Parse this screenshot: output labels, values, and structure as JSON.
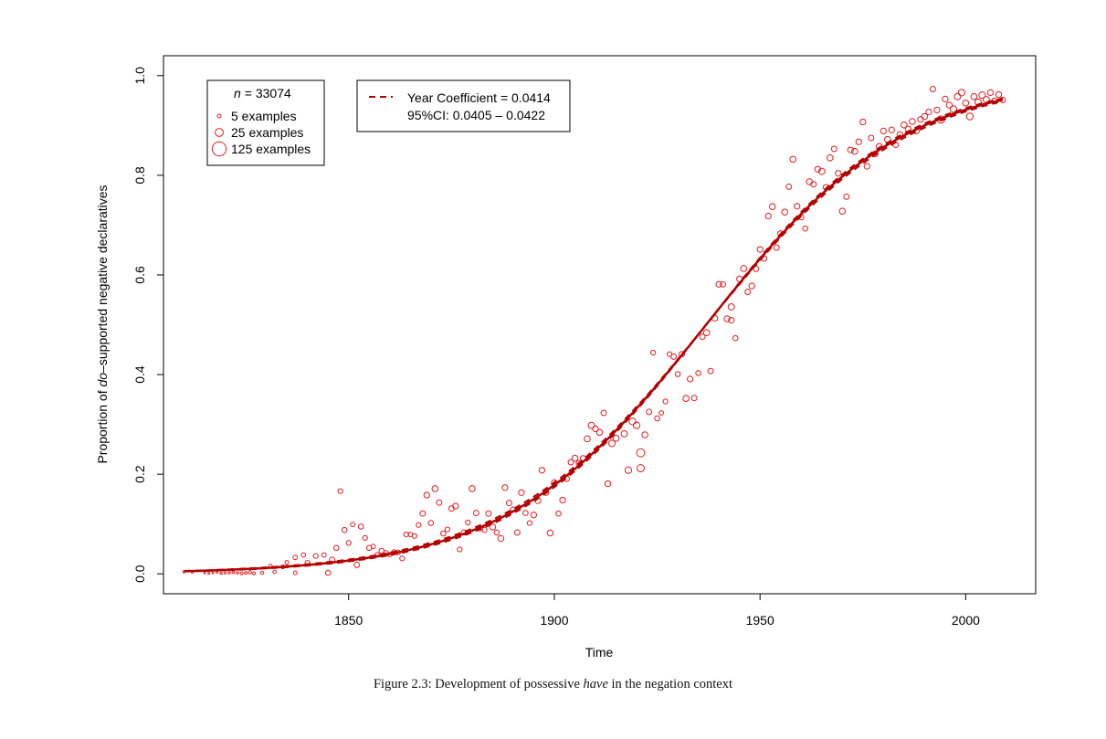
{
  "chart_data": {
    "type": "scatter",
    "xlabel": "Time",
    "ylabel_pre": "Proportion of ",
    "ylabel_italic": "do",
    "ylabel_post": "–supported negative declaratives",
    "xlim": [
      1805,
      2017
    ],
    "ylim": [
      -0.04,
      1.04
    ],
    "xticks": [
      1850,
      1900,
      1950,
      2000
    ],
    "yticks": [
      0.0,
      0.2,
      0.4,
      0.6,
      0.8,
      1.0
    ],
    "ytick_labels": [
      "0.0",
      "0.2",
      "0.4",
      "0.6",
      "0.8",
      "1.0"
    ],
    "colors": {
      "points": "#e8191c",
      "fit": "#b30000",
      "axis": "#000000"
    },
    "size_legend": {
      "n_label": "n",
      "n_value": "= 33074",
      "entries": [
        {
          "label": "5 examples",
          "count": 5
        },
        {
          "label": "25 examples",
          "count": 25
        },
        {
          "label": "125 examples",
          "count": 125
        }
      ]
    },
    "fit_legend": {
      "line1": "Year Coefficient = 0.0414",
      "line2": "95%CI:  0.0405 – 0.0422"
    },
    "fit": {
      "type": "logistic",
      "midpoint": 1936.9,
      "slope": 0.0414,
      "ci_slopes": [
        0.0405,
        0.0422
      ],
      "x_range": [
        1810,
        2009
      ]
    },
    "points": [
      [
        1810,
        0.004,
        3
      ],
      [
        1812,
        0.003,
        2
      ],
      [
        1815,
        0.002,
        2
      ],
      [
        1816,
        0.001,
        2
      ],
      [
        1817,
        0.002,
        2
      ],
      [
        1818,
        0.003,
        2
      ],
      [
        1819,
        0.001,
        3
      ],
      [
        1820,
        0.002,
        3
      ],
      [
        1821,
        0.002,
        3
      ],
      [
        1822,
        0.003,
        4
      ],
      [
        1823,
        0.002,
        3
      ],
      [
        1824,
        0.001,
        5
      ],
      [
        1825,
        0.002,
        4
      ],
      [
        1826,
        0.003,
        6
      ],
      [
        1827,
        0.001,
        5
      ],
      [
        1829,
        0.002,
        6
      ],
      [
        1831,
        0.016,
        7
      ],
      [
        1832,
        0.004,
        7
      ],
      [
        1834,
        0.014,
        9
      ],
      [
        1835,
        0.023,
        8
      ],
      [
        1837,
        0.002,
        8
      ],
      [
        1837,
        0.033,
        12
      ],
      [
        1839,
        0.038,
        11
      ],
      [
        1840,
        0.022,
        14
      ],
      [
        1842,
        0.036,
        14
      ],
      [
        1844,
        0.038,
        12
      ],
      [
        1845,
        0.002,
        16
      ],
      [
        1846,
        0.028,
        18
      ],
      [
        1847,
        0.052,
        16
      ],
      [
        1848,
        0.166,
        14
      ],
      [
        1849,
        0.088,
        16
      ],
      [
        1850,
        0.062,
        14
      ],
      [
        1851,
        0.099,
        12
      ],
      [
        1852,
        0.018,
        18
      ],
      [
        1853,
        0.095,
        16
      ],
      [
        1854,
        0.072,
        14
      ],
      [
        1855,
        0.052,
        16
      ],
      [
        1856,
        0.055,
        12
      ],
      [
        1857,
        0.038,
        14
      ],
      [
        1858,
        0.046,
        16
      ],
      [
        1859,
        0.042,
        14
      ],
      [
        1860,
        0.039,
        14
      ],
      [
        1861,
        0.044,
        12
      ],
      [
        1862,
        0.043,
        14
      ],
      [
        1863,
        0.031,
        14
      ],
      [
        1864,
        0.079,
        14
      ],
      [
        1865,
        0.079,
        12
      ],
      [
        1866,
        0.076,
        14
      ],
      [
        1867,
        0.098,
        14
      ],
      [
        1868,
        0.121,
        18
      ],
      [
        1869,
        0.158,
        20
      ],
      [
        1870,
        0.102,
        16
      ],
      [
        1871,
        0.171,
        22
      ],
      [
        1872,
        0.143,
        18
      ],
      [
        1873,
        0.081,
        16
      ],
      [
        1874,
        0.089,
        14
      ],
      [
        1875,
        0.131,
        18
      ],
      [
        1876,
        0.136,
        20
      ],
      [
        1877,
        0.049,
        14
      ],
      [
        1878,
        0.083,
        16
      ],
      [
        1879,
        0.103,
        14
      ],
      [
        1880,
        0.171,
        22
      ],
      [
        1881,
        0.122,
        18
      ],
      [
        1882,
        0.091,
        14
      ],
      [
        1883,
        0.088,
        16
      ],
      [
        1884,
        0.121,
        18
      ],
      [
        1885,
        0.094,
        22
      ],
      [
        1886,
        0.083,
        16
      ],
      [
        1887,
        0.071,
        22
      ],
      [
        1888,
        0.173,
        20
      ],
      [
        1889,
        0.142,
        18
      ],
      [
        1890,
        0.129,
        16
      ],
      [
        1891,
        0.083,
        18
      ],
      [
        1892,
        0.163,
        20
      ],
      [
        1893,
        0.122,
        16
      ],
      [
        1894,
        0.102,
        14
      ],
      [
        1895,
        0.118,
        20
      ],
      [
        1896,
        0.147,
        22
      ],
      [
        1897,
        0.208,
        20
      ],
      [
        1898,
        0.163,
        18
      ],
      [
        1899,
        0.082,
        22
      ],
      [
        1900,
        0.183,
        20
      ],
      [
        1901,
        0.121,
        16
      ],
      [
        1902,
        0.148,
        20
      ],
      [
        1903,
        0.191,
        18
      ],
      [
        1904,
        0.224,
        18
      ],
      [
        1905,
        0.232,
        22
      ],
      [
        1906,
        0.222,
        20
      ],
      [
        1907,
        0.232,
        18
      ],
      [
        1908,
        0.271,
        22
      ],
      [
        1909,
        0.298,
        24
      ],
      [
        1910,
        0.291,
        20
      ],
      [
        1911,
        0.284,
        22
      ],
      [
        1912,
        0.323,
        18
      ],
      [
        1913,
        0.181,
        20
      ],
      [
        1914,
        0.262,
        26
      ],
      [
        1915,
        0.272,
        22
      ],
      [
        1917,
        0.281,
        24
      ],
      [
        1918,
        0.208,
        26
      ],
      [
        1919,
        0.306,
        28
      ],
      [
        1920,
        0.298,
        26
      ],
      [
        1921,
        0.243,
        40
      ],
      [
        1921,
        0.212,
        32
      ],
      [
        1922,
        0.279,
        22
      ],
      [
        1923,
        0.325,
        18
      ],
      [
        1924,
        0.444,
        14
      ],
      [
        1925,
        0.312,
        16
      ],
      [
        1926,
        0.323,
        12
      ],
      [
        1927,
        0.346,
        14
      ],
      [
        1928,
        0.441,
        14
      ],
      [
        1929,
        0.436,
        18
      ],
      [
        1930,
        0.401,
        16
      ],
      [
        1931,
        0.441,
        18
      ],
      [
        1932,
        0.352,
        22
      ],
      [
        1933,
        0.391,
        20
      ],
      [
        1934,
        0.353,
        18
      ],
      [
        1935,
        0.403,
        16
      ],
      [
        1936,
        0.476,
        18
      ],
      [
        1937,
        0.484,
        22
      ],
      [
        1938,
        0.407,
        18
      ],
      [
        1939,
        0.513,
        20
      ],
      [
        1940,
        0.581,
        20
      ],
      [
        1941,
        0.581,
        18
      ],
      [
        1942,
        0.512,
        22
      ],
      [
        1943,
        0.536,
        24
      ],
      [
        1943,
        0.509,
        20
      ],
      [
        1944,
        0.473,
        16
      ],
      [
        1945,
        0.592,
        20
      ],
      [
        1946,
        0.613,
        22
      ],
      [
        1947,
        0.566,
        18
      ],
      [
        1948,
        0.578,
        20
      ],
      [
        1949,
        0.612,
        18
      ],
      [
        1950,
        0.651,
        20
      ],
      [
        1951,
        0.633,
        18
      ],
      [
        1952,
        0.718,
        20
      ],
      [
        1953,
        0.737,
        22
      ],
      [
        1954,
        0.655,
        18
      ],
      [
        1955,
        0.683,
        20
      ],
      [
        1956,
        0.726,
        22
      ],
      [
        1957,
        0.777,
        18
      ],
      [
        1958,
        0.832,
        22
      ],
      [
        1959,
        0.738,
        20
      ],
      [
        1960,
        0.716,
        18
      ],
      [
        1961,
        0.693,
        16
      ],
      [
        1962,
        0.787,
        22
      ],
      [
        1963,
        0.782,
        18
      ],
      [
        1964,
        0.812,
        20
      ],
      [
        1965,
        0.808,
        24
      ],
      [
        1966,
        0.776,
        18
      ],
      [
        1967,
        0.835,
        22
      ],
      [
        1968,
        0.853,
        18
      ],
      [
        1969,
        0.804,
        20
      ],
      [
        1970,
        0.728,
        22
      ],
      [
        1971,
        0.757,
        18
      ],
      [
        1972,
        0.851,
        20
      ],
      [
        1973,
        0.848,
        22
      ],
      [
        1974,
        0.867,
        20
      ],
      [
        1975,
        0.907,
        20
      ],
      [
        1976,
        0.818,
        20
      ],
      [
        1977,
        0.875,
        18
      ],
      [
        1978,
        0.843,
        20
      ],
      [
        1979,
        0.858,
        22
      ],
      [
        1980,
        0.889,
        20
      ],
      [
        1981,
        0.872,
        22
      ],
      [
        1982,
        0.891,
        20
      ],
      [
        1983,
        0.861,
        18
      ],
      [
        1984,
        0.882,
        20
      ],
      [
        1985,
        0.901,
        22
      ],
      [
        1986,
        0.893,
        20
      ],
      [
        1987,
        0.908,
        22
      ],
      [
        1988,
        0.889,
        20
      ],
      [
        1989,
        0.912,
        20
      ],
      [
        1990,
        0.918,
        22
      ],
      [
        1991,
        0.927,
        20
      ],
      [
        1992,
        0.973,
        18
      ],
      [
        1993,
        0.931,
        20
      ],
      [
        1994,
        0.912,
        32
      ],
      [
        1995,
        0.953,
        20
      ],
      [
        1996,
        0.941,
        22
      ],
      [
        1997,
        0.933,
        26
      ],
      [
        1998,
        0.958,
        24
      ],
      [
        1999,
        0.966,
        26
      ],
      [
        2000,
        0.945,
        22
      ],
      [
        2001,
        0.918,
        28
      ],
      [
        2002,
        0.958,
        22
      ],
      [
        2003,
        0.947,
        24
      ],
      [
        2004,
        0.961,
        26
      ],
      [
        2005,
        0.952,
        24
      ],
      [
        2006,
        0.966,
        20
      ],
      [
        2007,
        0.949,
        22
      ],
      [
        2008,
        0.962,
        20
      ],
      [
        2009,
        0.951,
        18
      ]
    ]
  },
  "caption": {
    "prefix": "Figure 2.3: Development of possessive ",
    "italic": "have",
    "suffix": " in the negation context"
  }
}
